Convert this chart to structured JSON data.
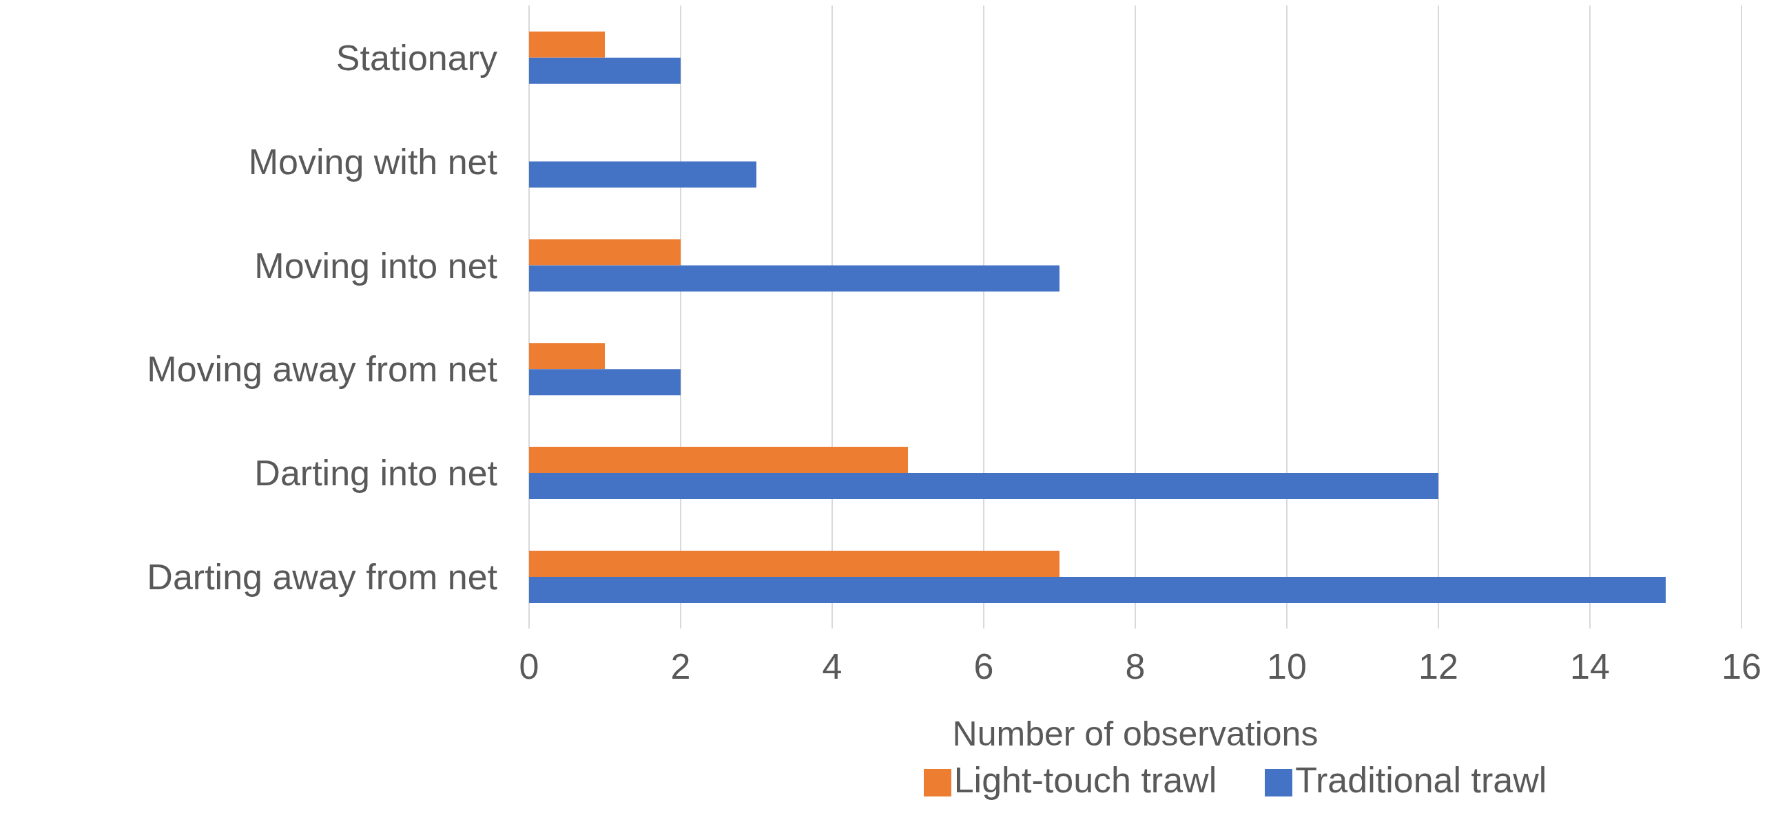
{
  "chart_data": {
    "type": "bar",
    "orientation": "horizontal",
    "xlabel": "Number of observations",
    "categories": [
      "Stationary",
      "Moving with net",
      "Moving into net",
      "Moving away from net",
      "Darting into net",
      "Darting away from net"
    ],
    "series": [
      {
        "name": "Light-touch trawl",
        "color": "#ed7d31",
        "values": [
          1,
          0,
          2,
          1,
          5,
          7
        ]
      },
      {
        "name": "Traditional trawl",
        "color": "#4472c4",
        "values": [
          2,
          3,
          7,
          2,
          12,
          15
        ]
      }
    ],
    "xlim": [
      0,
      16
    ],
    "xticks": [
      0,
      2,
      4,
      6,
      8,
      10,
      12,
      14,
      16
    ],
    "grid": "x",
    "legend": "bottom"
  }
}
